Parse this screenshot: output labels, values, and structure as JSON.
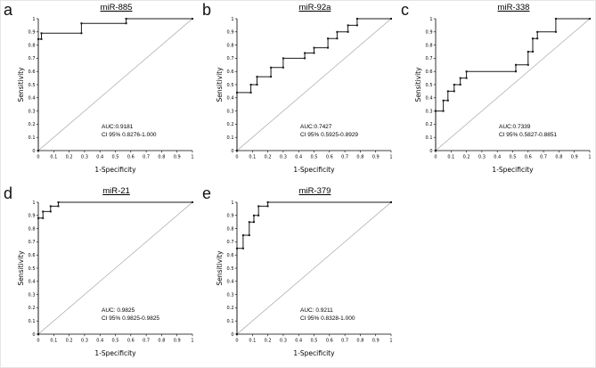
{
  "chart_data": [
    {
      "type": "line",
      "panel_label": "a",
      "title": "miR-885",
      "xlabel": "1-Specificity",
      "ylabel": "Sensitivity",
      "xlim": [
        0,
        1
      ],
      "ylim": [
        0,
        1
      ],
      "x_ticks": [
        "0",
        "0.1",
        "0.2",
        "0.3",
        "0.4",
        "0.5",
        "0.6",
        "0.7",
        "0.8",
        "0.9",
        "1"
      ],
      "y_ticks": [
        "0",
        "0.1",
        "0.2",
        "0.3",
        "0.4",
        "0.5",
        "0.6",
        "0.7",
        "0.8",
        "0.9",
        "1"
      ],
      "auc": 0.9181,
      "ci_95": "0.8276-1.000",
      "auc_label": "AUC:0.9181",
      "ci_label": "CI 95% 0.8276-1.000",
      "diagonal": true,
      "roc_points": [
        [
          0,
          0
        ],
        [
          0,
          0.845
        ],
        [
          0.02,
          0.845
        ],
        [
          0.02,
          0.89
        ],
        [
          0.28,
          0.89
        ],
        [
          0.28,
          0.965
        ],
        [
          0.57,
          0.965
        ],
        [
          0.57,
          1
        ],
        [
          1,
          1
        ]
      ]
    },
    {
      "type": "line",
      "panel_label": "b",
      "title": "miR-92a",
      "xlabel": "1-Specificity",
      "ylabel": "Sensitivity",
      "xlim": [
        0,
        1
      ],
      "ylim": [
        0,
        1
      ],
      "x_ticks": [
        "0",
        "0.1",
        "0.2",
        "0.3",
        "0.4",
        "0.5",
        "0.6",
        "0.7",
        "0.8",
        "0.9",
        "1"
      ],
      "y_ticks": [
        "0",
        "0.1",
        "0.2",
        "0.3",
        "0.4",
        "0.5",
        "0.6",
        "0.7",
        "0.8",
        "0.9",
        "1"
      ],
      "auc": 0.7427,
      "ci_95": "0.5925-0.8929",
      "auc_label": "AUC:0.7427",
      "ci_label": "CI 95% 0.5925-0.8929",
      "diagonal": true,
      "roc_points": [
        [
          0,
          0
        ],
        [
          0,
          0.44
        ],
        [
          0.09,
          0.44
        ],
        [
          0.09,
          0.5
        ],
        [
          0.13,
          0.5
        ],
        [
          0.13,
          0.56
        ],
        [
          0.22,
          0.56
        ],
        [
          0.22,
          0.63
        ],
        [
          0.3,
          0.63
        ],
        [
          0.3,
          0.7
        ],
        [
          0.44,
          0.7
        ],
        [
          0.44,
          0.74
        ],
        [
          0.5,
          0.74
        ],
        [
          0.5,
          0.78
        ],
        [
          0.59,
          0.78
        ],
        [
          0.59,
          0.85
        ],
        [
          0.65,
          0.85
        ],
        [
          0.65,
          0.9
        ],
        [
          0.72,
          0.9
        ],
        [
          0.72,
          0.95
        ],
        [
          0.78,
          0.95
        ],
        [
          0.78,
          1
        ],
        [
          1,
          1
        ]
      ]
    },
    {
      "type": "line",
      "panel_label": "c",
      "title": "miR-338",
      "xlabel": "1-Specificity",
      "ylabel": "Sensitivity",
      "xlim": [
        0,
        1
      ],
      "ylim": [
        0,
        1
      ],
      "x_ticks": [
        "0",
        "0.1",
        "0.2",
        "0.3",
        "0.4",
        "0.5",
        "0.6",
        "0.7",
        "0.8",
        "0.9",
        "1"
      ],
      "y_ticks": [
        "0",
        "0.1",
        "0.2",
        "0.3",
        "0.4",
        "0.5",
        "0.6",
        "0.7",
        "0.8",
        "0.9",
        "1"
      ],
      "auc": 0.7339,
      "ci_95": "0.5827-0.8851",
      "auc_label": "AUC:0.7339",
      "ci_label": "CI 95% 0.5827-0.8851",
      "diagonal": true,
      "roc_points": [
        [
          0,
          0
        ],
        [
          0,
          0.3
        ],
        [
          0.05,
          0.3
        ],
        [
          0.05,
          0.38
        ],
        [
          0.08,
          0.38
        ],
        [
          0.08,
          0.45
        ],
        [
          0.12,
          0.45
        ],
        [
          0.12,
          0.5
        ],
        [
          0.16,
          0.5
        ],
        [
          0.16,
          0.55
        ],
        [
          0.2,
          0.55
        ],
        [
          0.2,
          0.6
        ],
        [
          0.52,
          0.6
        ],
        [
          0.52,
          0.65
        ],
        [
          0.6,
          0.65
        ],
        [
          0.6,
          0.75
        ],
        [
          0.63,
          0.75
        ],
        [
          0.63,
          0.85
        ],
        [
          0.66,
          0.85
        ],
        [
          0.66,
          0.9
        ],
        [
          0.78,
          0.9
        ],
        [
          0.78,
          1
        ],
        [
          1,
          1
        ]
      ]
    },
    {
      "type": "line",
      "panel_label": "d",
      "title": "miR-21",
      "xlabel": "1-Specificity",
      "ylabel": "Sensitivity",
      "xlim": [
        0,
        1
      ],
      "ylim": [
        0,
        1
      ],
      "x_ticks": [
        "0",
        "0.1",
        "0.2",
        "0.3",
        "0.4",
        "0.5",
        "0.6",
        "0.7",
        "0.8",
        "0.9",
        "1"
      ],
      "y_ticks": [
        "0",
        "0.1",
        "0.2",
        "0.3",
        "0.4",
        "0.5",
        "0.6",
        "0.7",
        "0.8",
        "0.9",
        "1"
      ],
      "auc": 0.9825,
      "ci_95": "0.9825-0.9825",
      "auc_label": "AUC: 0.9825",
      "ci_label": "CI 95% 0.9825-0.9825",
      "diagonal": true,
      "roc_points": [
        [
          0,
          0
        ],
        [
          0,
          0.88
        ],
        [
          0.03,
          0.88
        ],
        [
          0.03,
          0.93
        ],
        [
          0.08,
          0.93
        ],
        [
          0.08,
          0.97
        ],
        [
          0.13,
          0.97
        ],
        [
          0.13,
          1
        ],
        [
          1,
          1
        ]
      ]
    },
    {
      "type": "line",
      "panel_label": "e",
      "title": "miR-379",
      "xlabel": "1-Specificity",
      "ylabel": "Sensitivity",
      "xlim": [
        0,
        1
      ],
      "ylim": [
        0,
        1
      ],
      "x_ticks": [
        "0",
        "0.1",
        "0.2",
        "0.3",
        "0.4",
        "0.5",
        "0.6",
        "0.7",
        "0.8",
        "0.9",
        "1"
      ],
      "y_ticks": [
        "0",
        "0.1",
        "0.2",
        "0.3",
        "0.4",
        "0.5",
        "0.6",
        "0.7",
        "0.8",
        "0.9",
        "1"
      ],
      "auc": 0.9211,
      "ci_95": "0.8328-1.000",
      "auc_label": "AUC: 0.9211",
      "ci_label": "CI 95% 0.8328-1.000",
      "diagonal": true,
      "roc_points": [
        [
          0,
          0
        ],
        [
          0,
          0.65
        ],
        [
          0.04,
          0.65
        ],
        [
          0.04,
          0.75
        ],
        [
          0.08,
          0.75
        ],
        [
          0.08,
          0.85
        ],
        [
          0.11,
          0.85
        ],
        [
          0.11,
          0.9
        ],
        [
          0.14,
          0.9
        ],
        [
          0.14,
          0.97
        ],
        [
          0.2,
          0.97
        ],
        [
          0.2,
          1
        ],
        [
          1,
          1
        ]
      ]
    }
  ]
}
